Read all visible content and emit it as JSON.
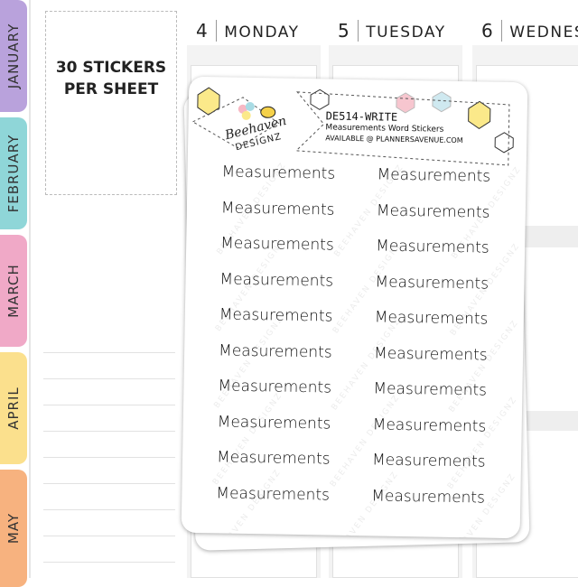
{
  "tabs": [
    "JANUARY",
    "FEBRUARY",
    "MARCH",
    "APRIL",
    "MAY"
  ],
  "badge": {
    "line1": "30 STICKERS",
    "line2": "PER SHEET"
  },
  "days": [
    {
      "number": "4",
      "name": "MONDAY"
    },
    {
      "number": "5",
      "name": "TUESDAY"
    },
    {
      "number": "6",
      "name": "WEDNES"
    }
  ],
  "sticker_sheet": {
    "code": "DE514-WRITE",
    "subtitle": "Measurements Word Stickers",
    "available": "AVAILABLE @",
    "site": "PLANNERSAVENUE.COM",
    "brand_top": "Beehaven",
    "brand_bottom": "DESIGNZ",
    "watermark": "BEEHAVEN DESIGNZ",
    "left": [
      "Measurements",
      "Measurements",
      "Measurements",
      "Measurements",
      "Measurements",
      "Measurements",
      "Measurements",
      "Measurements",
      "Measurements",
      "Measurements"
    ],
    "right": [
      "Measurements",
      "Measurements",
      "Measurements",
      "Measurements",
      "Measurements",
      "Measurements",
      "Measurements",
      "Measurements",
      "Measurements",
      "Measurements"
    ]
  }
}
